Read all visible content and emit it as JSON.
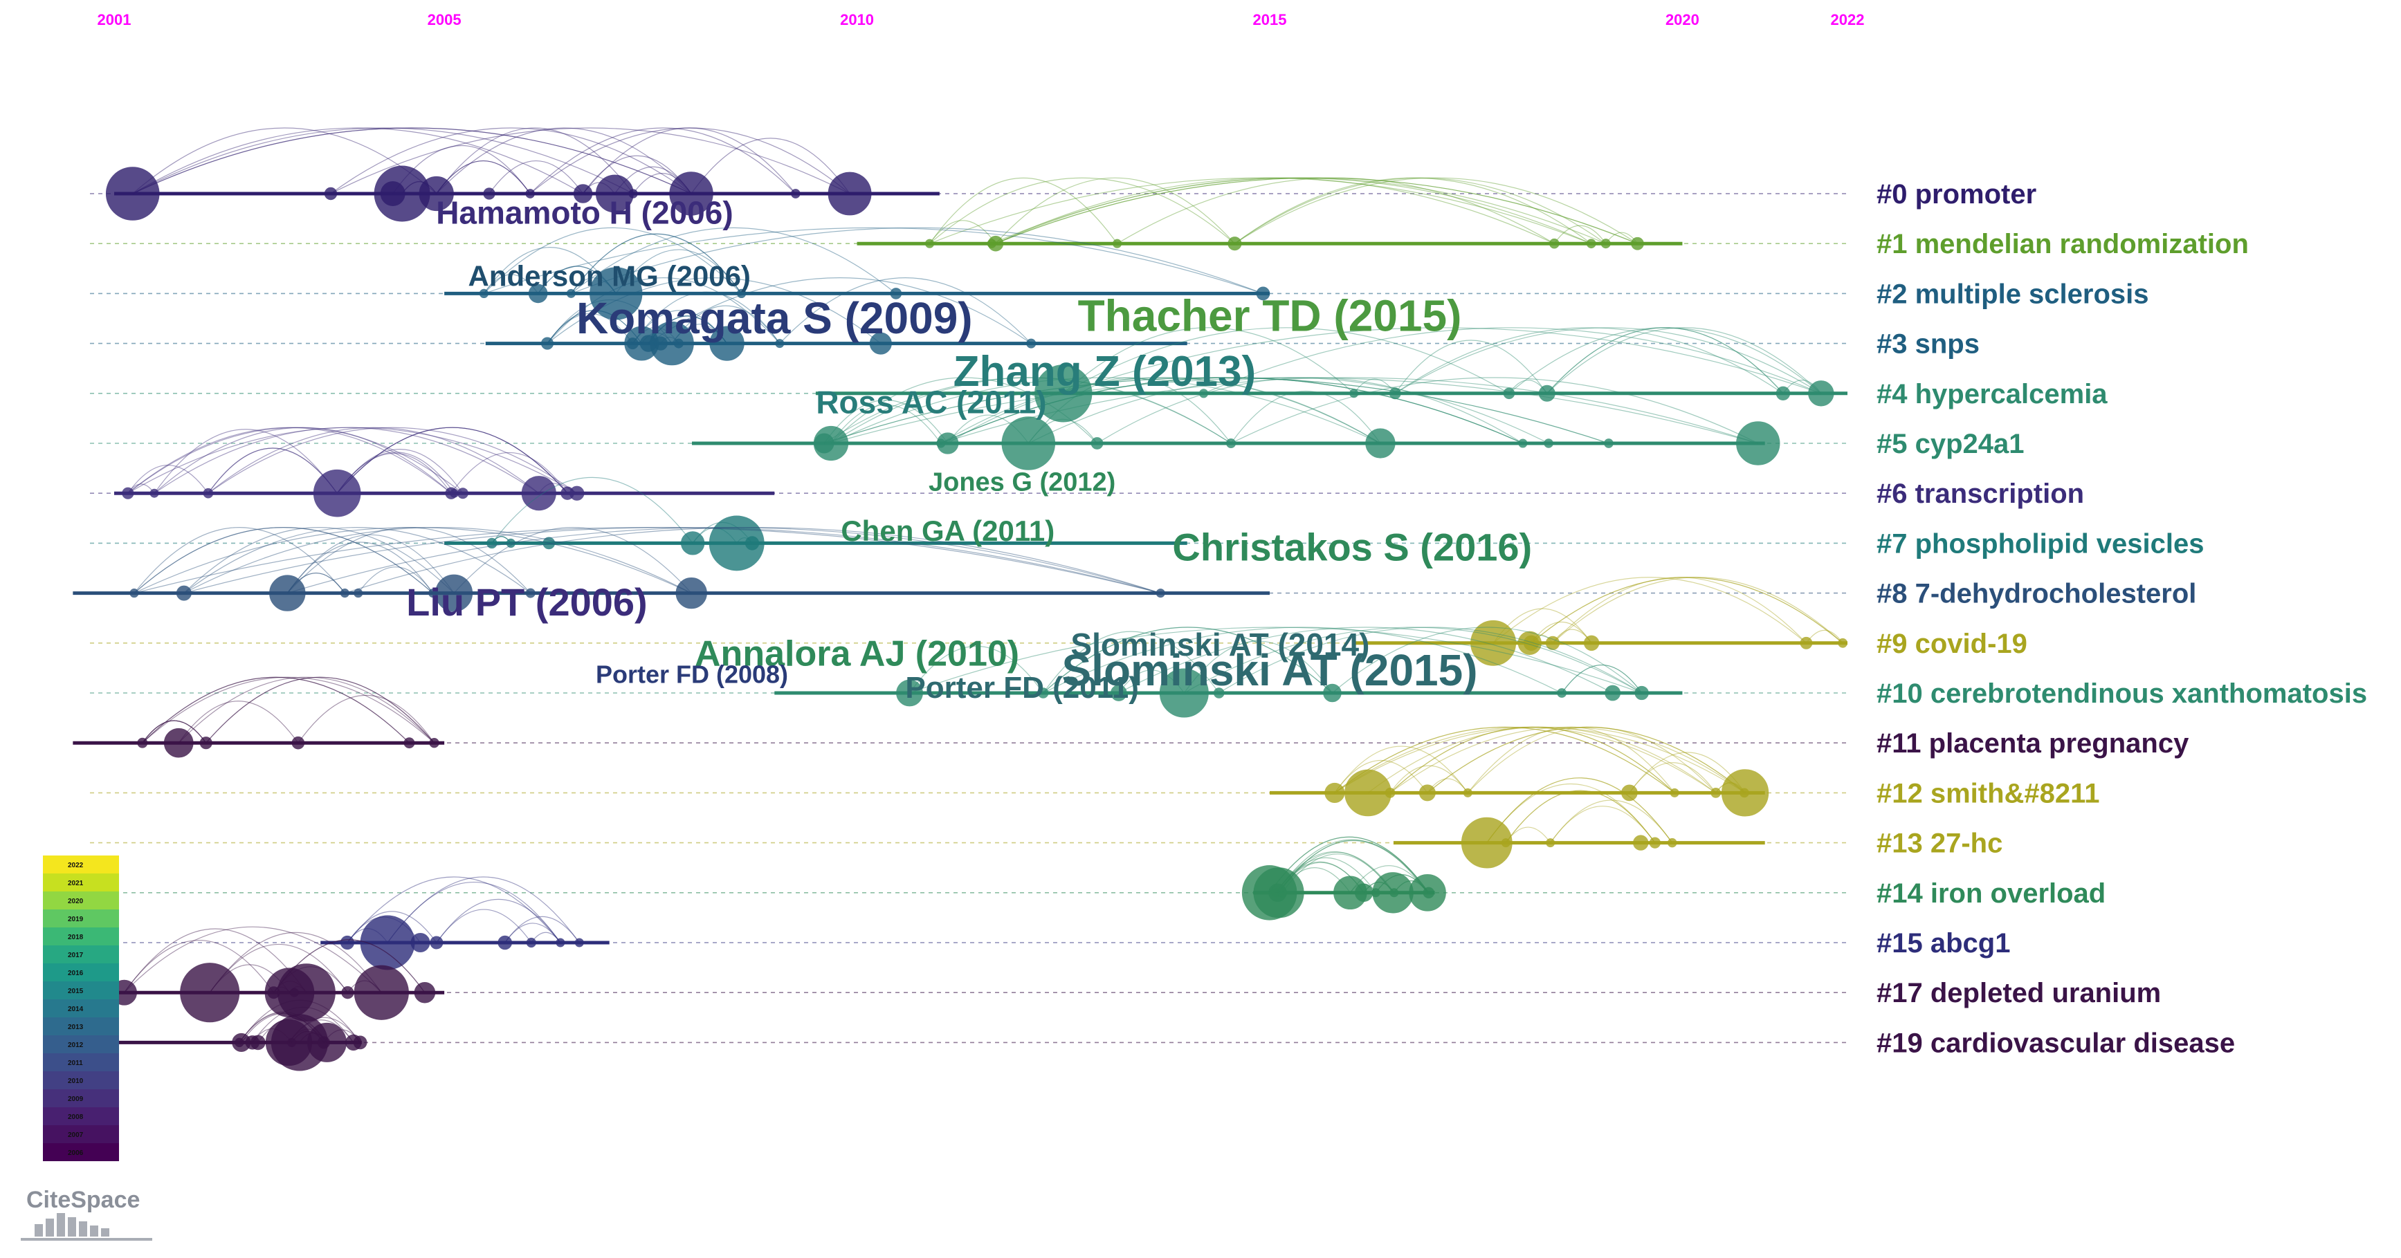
{
  "timeline": {
    "start_year": 2001,
    "end_year": 2022,
    "year_ticks": [
      "2001",
      "2005",
      "2010",
      "2015",
      "2020",
      "2022"
    ],
    "tick_color": "#ff00ff"
  },
  "clusters": [
    {
      "id": "c0",
      "label": "#0 promoter",
      "color": "#2e1d6c",
      "start": 2001.0,
      "end": 2011.0
    },
    {
      "id": "c1",
      "label": "#1 mendelian randomization",
      "color": "#5e9e2c",
      "start": 2010.0,
      "end": 2020.0
    },
    {
      "id": "c2",
      "label": "#2 multiple sclerosis",
      "color": "#1f5e80",
      "start": 2005.0,
      "end": 2015.0
    },
    {
      "id": "c3",
      "label": "#3 snps",
      "color": "#1f5e80",
      "start": 2005.5,
      "end": 2014.0
    },
    {
      "id": "c4",
      "label": "#4 hypercalcemia",
      "color": "#2e8b6f",
      "start": 2009.5,
      "end": 2022.0
    },
    {
      "id": "c5",
      "label": "#5 cyp24a1",
      "color": "#2e8b6f",
      "start": 2008.0,
      "end": 2021.0
    },
    {
      "id": "c6",
      "label": "#6 transcription",
      "color": "#3b2c7a",
      "start": 2001.0,
      "end": 2009.0
    },
    {
      "id": "c7",
      "label": "#7 phospholipid vesicles",
      "color": "#1f7a7a",
      "start": 2005.0,
      "end": 2014.0
    },
    {
      "id": "c8",
      "label": "#8 7-dehydrocholesterol",
      "color": "#2b4f7a",
      "start": 2000.5,
      "end": 2015.0
    },
    {
      "id": "c9",
      "label": "#9 covid-19",
      "color": "#a9a51f",
      "start": 2016.0,
      "end": 2022.0
    },
    {
      "id": "c10",
      "label": "#10 cerebrotendinous xanthomatosis",
      "color": "#2e8b6f",
      "start": 2009.0,
      "end": 2020.0
    },
    {
      "id": "c11",
      "label": "#11 placenta    pregnancy",
      "color": "#3a1347",
      "start": 2000.5,
      "end": 2005.0
    },
    {
      "id": "c12",
      "label": "#12 smith&#8211",
      "color": "#a9a51f",
      "start": 2015.0,
      "end": 2021.0
    },
    {
      "id": "c13",
      "label": "#13 27-hc",
      "color": "#a9a51f",
      "start": 2016.5,
      "end": 2021.0
    },
    {
      "id": "c14",
      "label": "#14 iron overload",
      "color": "#2f8a5a",
      "start": 2014.8,
      "end": 2017.0
    },
    {
      "id": "c15",
      "label": "#15 abcg1",
      "color": "#2d2d7a",
      "start": 2003.5,
      "end": 2007.0
    },
    {
      "id": "c17",
      "label": "#17 depleted uranium",
      "color": "#3a1347",
      "start": 2001.0,
      "end": 2005.0
    },
    {
      "id": "c19",
      "label": "#19 cardiovascular disease",
      "color": "#3a1347",
      "start": 2001.0,
      "end": 2004.0
    }
  ],
  "author_labels": [
    {
      "text": "Hamamoto H (2006)",
      "year": 2006.7,
      "row": 0.6,
      "size": 46,
      "color": "#3b2c7a"
    },
    {
      "text": "Anderson MG (2006)",
      "year": 2007.0,
      "row": 1.85,
      "size": 42,
      "color": "#1f4e6e"
    },
    {
      "text": "Komagata S (2009)",
      "year": 2009.0,
      "row": 2.8,
      "size": 64,
      "color": "#2a3b78"
    },
    {
      "text": "Thacher TD (2015)",
      "year": 2015.0,
      "row": 2.75,
      "size": 64,
      "color": "#4c9a40"
    },
    {
      "text": "Zhang Z (2013)",
      "year": 2013.0,
      "row": 3.85,
      "size": 62,
      "color": "#287d7a"
    },
    {
      "text": "Ross AC (2011)",
      "year": 2010.9,
      "row": 4.4,
      "size": 46,
      "color": "#287d7a"
    },
    {
      "text": "Jones G (2012)",
      "year": 2012.0,
      "row": 5.95,
      "size": 38,
      "color": "#2f8a5a"
    },
    {
      "text": "Chen GA (2011)",
      "year": 2011.1,
      "row": 6.95,
      "size": 42,
      "color": "#2f8a5a"
    },
    {
      "text": "Christakos S (2016)",
      "year": 2016.0,
      "row": 7.35,
      "size": 56,
      "color": "#2f8a5a"
    },
    {
      "text": "Liu PT (2006)",
      "year": 2006.0,
      "row": 8.45,
      "size": 56,
      "color": "#3b2c7a"
    },
    {
      "text": "Annalora AJ (2010)",
      "year": 2010.0,
      "row": 9.45,
      "size": 52,
      "color": "#2f8a5a"
    },
    {
      "text": "Slominski AT (2014)",
      "year": 2014.4,
      "row": 9.25,
      "size": 46,
      "color": "#2f6a70"
    },
    {
      "text": "Porter FD (2008)",
      "year": 2008.0,
      "row": 9.8,
      "size": 36,
      "color": "#2a3b78"
    },
    {
      "text": "Porter FD (2011)",
      "year": 2012.0,
      "row": 10.1,
      "size": 44,
      "color": "#2f6a70"
    },
    {
      "text": "Slominski AT (2015)",
      "year": 2015.0,
      "row": 9.85,
      "size": 64,
      "color": "#2f6a70"
    }
  ],
  "legend": {
    "years": [
      "2022",
      "2021",
      "2020",
      "2019",
      "2018",
      "2017",
      "2016",
      "2015",
      "2014",
      "2013",
      "2012",
      "2011",
      "2010",
      "2009",
      "2008",
      "2007",
      "2006"
    ],
    "colors": [
      "#f4e61e",
      "#c7e020",
      "#92d742",
      "#5fc862",
      "#3bb875",
      "#27a882",
      "#1e9a89",
      "#21898c",
      "#27798e",
      "#2e6b8e",
      "#355e8d",
      "#3c4f8a",
      "#424084",
      "#46307b",
      "#482070",
      "#461261",
      "#440154"
    ]
  },
  "logo": {
    "text": "CiteSpace"
  }
}
